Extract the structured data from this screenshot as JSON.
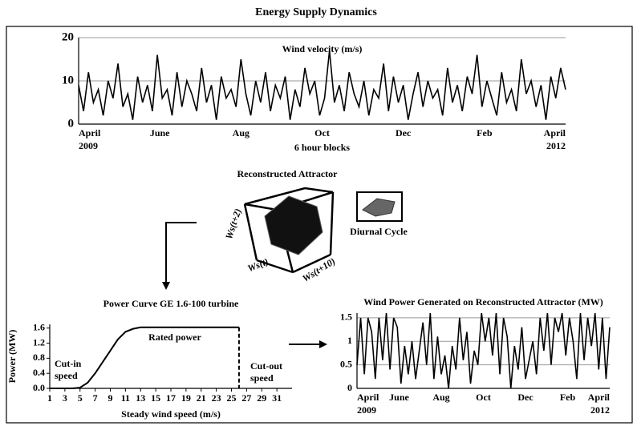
{
  "title": "Energy Supply Dynamics",
  "chart_data": [
    {
      "type": "line",
      "title": "Wind velocity (m/s)",
      "x_label": "6 hour blocks",
      "color": "#000000",
      "x_tick_labels": [
        "April",
        "June",
        "Aug",
        "Oct",
        "Dec",
        "Feb",
        "April"
      ],
      "year_labels": [
        "2009",
        "2012"
      ],
      "ylim": [
        0,
        20
      ],
      "yticks": [
        0,
        10,
        20
      ],
      "grid": true,
      "values": [
        9,
        3,
        12,
        5,
        8,
        2,
        10,
        6,
        14,
        4,
        7,
        1,
        11,
        5,
        9,
        3,
        16,
        6,
        8,
        2,
        12,
        4,
        10,
        7,
        3,
        13,
        5,
        9,
        1,
        11,
        6,
        8,
        4,
        15,
        7,
        2,
        10,
        5,
        12,
        3,
        9,
        6,
        11,
        1,
        8,
        4,
        13,
        7,
        10,
        2,
        6,
        17,
        5,
        9,
        3,
        12,
        7,
        4,
        10,
        2,
        8,
        6,
        14,
        3,
        11,
        5,
        9,
        1,
        7,
        12,
        4,
        10,
        6,
        8,
        2,
        13,
        5,
        9,
        3,
        11,
        7,
        16,
        4,
        10,
        6,
        2,
        12,
        5,
        8,
        3,
        15,
        7,
        10,
        4,
        9,
        1,
        11,
        6,
        13,
        8
      ]
    },
    {
      "type": "line",
      "title": "Power Curve GE 1.6-100 turbine",
      "x_label": "Steady wind speed (m/s)",
      "y_label": "Power (MW)",
      "color": "#000000",
      "x": [
        1,
        2,
        3,
        4,
        5,
        6,
        7,
        8,
        9,
        10,
        11,
        12,
        13,
        14,
        16,
        18,
        20,
        22,
        24,
        26,
        26
      ],
      "values": [
        0,
        0,
        0,
        0,
        0.02,
        0.15,
        0.4,
        0.7,
        1.0,
        1.3,
        1.5,
        1.58,
        1.62,
        1.62,
        1.62,
        1.62,
        1.62,
        1.62,
        1.62,
        1.62,
        0
      ],
      "xlim": [
        1,
        33
      ],
      "xticks": [
        1,
        3,
        5,
        7,
        9,
        11,
        13,
        15,
        17,
        19,
        21,
        23,
        25,
        27,
        29,
        31
      ],
      "ylim": [
        0,
        1.7
      ],
      "yticks": [
        {
          "value": 0,
          "label": "0.0"
        },
        0.4,
        0.8,
        1.2,
        1.6
      ],
      "grid": false,
      "annotations": [
        [
          "Rated power"
        ],
        [
          "Cut-in",
          "speed"
        ],
        [
          "Cut-out",
          "speed"
        ]
      ]
    },
    {
      "type": "line",
      "title": "Wind Power Generated on Reconstructed Attractor (MW)",
      "color": "#000000",
      "x_tick_labels": [
        "April",
        "June",
        "Aug",
        "Oct",
        "Dec",
        "Feb",
        "April"
      ],
      "year_labels": [
        "2009",
        "2012"
      ],
      "ylim": [
        0,
        1.6
      ],
      "yticks": [
        0,
        0.5,
        1,
        1.5
      ],
      "grid": true,
      "values": [
        0.5,
        1.5,
        0.3,
        1.5,
        1.2,
        0.2,
        1.5,
        0.6,
        1.6,
        0.4,
        1.5,
        1.3,
        0.1,
        0.9,
        0.3,
        1.0,
        0.2,
        0.8,
        1.4,
        0.5,
        1.6,
        0.2,
        1.1,
        0.3,
        0.7,
        0,
        0.9,
        0.4,
        1.5,
        0.6,
        1.2,
        0.1,
        0.8,
        0.5,
        1.6,
        1.0,
        1.5,
        0.7,
        1.6,
        0.3,
        1.5,
        1.1,
        0,
        0.9,
        0.4,
        1.3,
        0.2,
        0.6,
        1.0,
        0.3,
        1.5,
        0.8,
        1.6,
        0.5,
        1.5,
        1.2,
        1.6,
        0.7,
        1.5,
        1.0,
        0.2,
        1.6,
        0.6,
        1.5,
        0.9,
        1.6,
        0.4,
        1.5,
        0.2,
        1.3
      ]
    }
  ],
  "diagram": {
    "title": "Reconstructed Attractor",
    "axes": [
      "Ws(t+2)",
      "Ws(t)",
      "Ws(t+10)"
    ],
    "inset_label": "Diurnal Cycle"
  }
}
